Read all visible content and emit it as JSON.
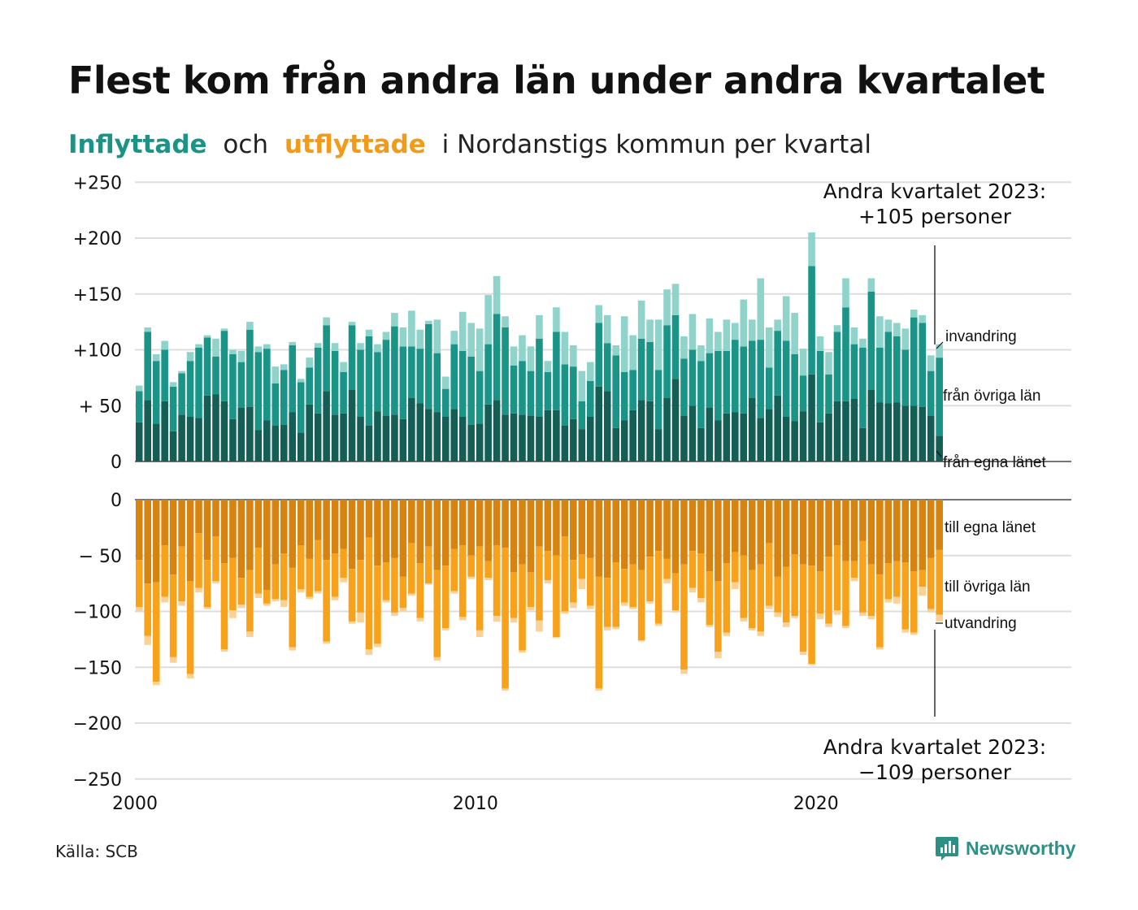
{
  "title": "Flest kom från andra län under andra kvartalet",
  "subtitle": {
    "in_word": "Inflyttade",
    "och": "och",
    "out_word": "utflyttade",
    "rest": "i Nordanstigs kommun per kvartal"
  },
  "source": "Källa: SCB",
  "logo": {
    "text": "Newsworthy",
    "icon": "newsworthy-logo-icon"
  },
  "colors": {
    "in_own": "#145e56",
    "in_other": "#1a9487",
    "in_immigration": "#8fd3ca",
    "out_own": "#d7830f",
    "out_other": "#f8a21c",
    "out_emigration": "#fbd196",
    "grid": "#dddddd",
    "text": "#111111"
  },
  "chart_data": {
    "type": "bar",
    "subtype": "diverging-stacked",
    "x_start": 2000,
    "x_step": 0.25,
    "xlim": [
      2000,
      2027.5
    ],
    "ylim": [
      -250,
      250
    ],
    "yticks": [
      "+250",
      "+200",
      "+150",
      "+100",
      "+ 50",
      "0",
      "0",
      "− 50",
      "−100",
      "−150",
      "−200",
      "−250"
    ],
    "xticks": [
      "2000",
      "2010",
      "2020"
    ],
    "grid": true,
    "labels_in": [
      "invandring",
      "från övriga län",
      "från egna länet"
    ],
    "labels_out": [
      "till egna länet",
      "till övriga län",
      "utvandring"
    ],
    "annotation_top": [
      "Andra kvartalet 2023:",
      "+105 personer"
    ],
    "annotation_bottom": [
      "Andra kvartalet 2023:",
      "−109 personer"
    ],
    "series": [
      {
        "name": "från egna länet",
        "values": [
          35,
          55,
          34,
          54,
          27,
          42,
          40,
          39,
          59,
          60,
          54,
          38,
          48,
          49,
          28,
          37,
          32,
          33,
          44,
          26,
          51,
          43,
          63,
          42,
          43,
          64,
          40,
          32,
          45,
          41,
          42,
          38,
          57,
          52,
          47,
          44,
          40,
          47,
          40,
          33,
          34,
          51,
          55,
          42,
          43,
          42,
          41,
          40,
          46,
          46,
          32,
          38,
          29,
          40,
          67,
          63,
          30,
          37,
          46,
          55,
          54,
          29,
          57,
          74,
          41,
          50,
          30,
          48,
          37,
          43,
          44,
          43,
          57,
          39,
          47,
          59,
          40,
          36,
          45,
          78,
          35,
          43,
          54,
          54,
          56,
          30,
          64,
          53,
          52,
          53,
          50,
          50,
          49,
          41,
          23
        ]
      },
      {
        "name": "från övriga län",
        "values": [
          28,
          61,
          56,
          46,
          40,
          37,
          50,
          63,
          52,
          34,
          63,
          58,
          41,
          69,
          70,
          64,
          38,
          49,
          60,
          45,
          33,
          59,
          59,
          57,
          37,
          58,
          60,
          80,
          53,
          68,
          79,
          65,
          46,
          49,
          76,
          53,
          25,
          58,
          59,
          61,
          47,
          54,
          77,
          78,
          43,
          48,
          40,
          70,
          34,
          70,
          55,
          47,
          25,
          32,
          57,
          43,
          65,
          43,
          36,
          55,
          53,
          53,
          65,
          57,
          51,
          50,
          60,
          49,
          62,
          56,
          65,
          60,
          51,
          70,
          37,
          58,
          68,
          60,
          32,
          97,
          64,
          35,
          62,
          84,
          49,
          72,
          88,
          49,
          64,
          59,
          50,
          79,
          75,
          40,
          70
        ]
      },
      {
        "name": "invandring",
        "values": [
          5,
          4,
          6,
          8,
          4,
          2,
          8,
          3,
          2,
          16,
          2,
          4,
          10,
          7,
          5,
          4,
          15,
          5,
          3,
          3,
          9,
          4,
          7,
          7,
          9,
          3,
          6,
          6,
          7,
          7,
          12,
          17,
          32,
          17,
          3,
          30,
          11,
          12,
          35,
          30,
          38,
          44,
          34,
          10,
          17,
          23,
          22,
          21,
          10,
          22,
          29,
          19,
          27,
          17,
          16,
          25,
          9,
          50,
          31,
          34,
          20,
          45,
          32,
          28,
          20,
          32,
          14,
          31,
          17,
          28,
          15,
          42,
          19,
          55,
          36,
          10,
          40,
          37,
          24,
          30,
          13,
          20,
          6,
          26,
          15,
          8,
          12,
          28,
          11,
          12,
          19,
          7,
          7,
          14,
          12
        ]
      },
      {
        "name": "till egna länet",
        "values": [
          -54,
          -75,
          -74,
          -41,
          -67,
          -42,
          -73,
          -30,
          -54,
          -33,
          -57,
          -52,
          -70,
          -63,
          -43,
          -81,
          -58,
          -48,
          -61,
          -41,
          -53,
          -36,
          -54,
          -48,
          -44,
          -62,
          -54,
          -34,
          -59,
          -56,
          -52,
          -69,
          -39,
          -57,
          -42,
          -63,
          -59,
          -44,
          -41,
          -50,
          -42,
          -55,
          -41,
          -43,
          -65,
          -58,
          -65,
          -42,
          -46,
          -50,
          -33,
          -54,
          -49,
          -52,
          -69,
          -70,
          -56,
          -62,
          -58,
          -63,
          -51,
          -46,
          -53,
          -66,
          -58,
          -46,
          -48,
          -64,
          -73,
          -57,
          -47,
          -50,
          -63,
          -58,
          -39,
          -69,
          -60,
          -49,
          -58,
          -59,
          -64,
          -51,
          -41,
          -55,
          -55,
          -37,
          -58,
          -67,
          -57,
          -55,
          -56,
          -64,
          -63,
          -52,
          -45
        ]
      },
      {
        "name": "till övriga län",
        "values": [
          -42,
          -47,
          -89,
          -46,
          -74,
          -49,
          -83,
          -49,
          -42,
          -40,
          -77,
          -47,
          -24,
          -55,
          -41,
          -12,
          -31,
          -42,
          -71,
          -39,
          -34,
          -46,
          -73,
          -39,
          -26,
          -47,
          -47,
          -100,
          -70,
          -34,
          -49,
          -28,
          -45,
          -49,
          -33,
          -78,
          -56,
          -38,
          -64,
          -19,
          -75,
          -15,
          -63,
          -126,
          -41,
          -77,
          -31,
          -66,
          -26,
          -73,
          -67,
          -38,
          -22,
          -43,
          -100,
          -44,
          -58,
          -30,
          -38,
          -63,
          -40,
          -65,
          -18,
          -33,
          -94,
          -33,
          -40,
          -48,
          -63,
          -62,
          -27,
          -56,
          -52,
          -60,
          -56,
          -32,
          -50,
          -55,
          -78,
          -88,
          -38,
          -60,
          -58,
          -58,
          -15,
          -64,
          -46,
          -65,
          -32,
          -32,
          -60,
          -55,
          -15,
          -46,
          -58
        ]
      },
      {
        "name": "utvandring",
        "values": [
          -4,
          -8,
          -3,
          -5,
          -5,
          -4,
          -4,
          -4,
          -2,
          -2,
          -2,
          -7,
          -3,
          -5,
          -4,
          -2,
          -2,
          -6,
          -3,
          -3,
          -2,
          -2,
          -2,
          -3,
          -4,
          -2,
          -9,
          -5,
          -3,
          -2,
          -3,
          -3,
          -2,
          -3,
          -1,
          -3,
          -2,
          -2,
          -3,
          -2,
          -6,
          -2,
          -5,
          -2,
          -4,
          -2,
          -3,
          -10,
          -3,
          -1,
          -2,
          -5,
          -9,
          -3,
          -2,
          -3,
          -2,
          -3,
          -2,
          -1,
          -2,
          -2,
          -4,
          -2,
          -4,
          -4,
          -4,
          -2,
          -6,
          -3,
          -6,
          -3,
          -2,
          -4,
          -3,
          -4,
          -4,
          -2,
          -3,
          -1,
          -5,
          -3,
          -4,
          -2,
          -3,
          -3,
          -3,
          -2,
          -3,
          -6,
          -3,
          -2,
          -8,
          -3,
          -6
        ]
      }
    ]
  }
}
